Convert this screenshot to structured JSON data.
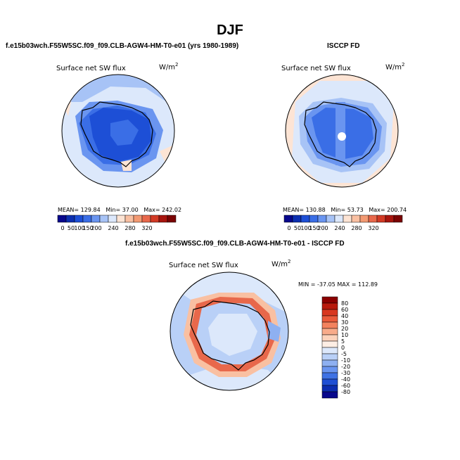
{
  "figure": {
    "season": "DJF",
    "panel1": {
      "title": "f.e15b03wch.F55W5SC.f09_f09.CLB-AGW4-HM-T0-e01 (yrs 1980-1989)",
      "variable": "Surface net SW flux",
      "units_base": "W/m",
      "units_exp": "2",
      "mean_label": "MEAN=",
      "mean": "129.84",
      "min_label": "Min=",
      "min": "37.00",
      "max_label": "Max=",
      "max": "242.02"
    },
    "panel2": {
      "title": "ISCCP FD",
      "variable": "Surface net SW flux",
      "units_base": "W/m",
      "units_exp": "2",
      "mean_label": "MEAN=",
      "mean": "130.88",
      "min_label": "Min=",
      "min": "53.73",
      "max_label": "Max=",
      "max": "200.74"
    },
    "panel3": {
      "title": "f.e15b03wch.F55W5SC.f09_f09.CLB-AGW4-HM-T0-e01 - ISCCP FD",
      "variable": "Surface net SW flux",
      "units_base": "W/m",
      "units_exp": "2",
      "minmax": "MIN = -37.05  MAX = 112.89"
    },
    "abs_colorbar": {
      "ticks": [
        "0",
        "50",
        "100",
        "150",
        "200",
        "240",
        "280",
        "320"
      ],
      "colors": [
        "#08088c",
        "#0c2fb0",
        "#1d4fd6",
        "#3a6ee6",
        "#6a95f0",
        "#a7c3f6",
        "#dce8fb",
        "#fde4d4",
        "#f9c0a2",
        "#f39a73",
        "#e8684b",
        "#d23a25",
        "#a8150e",
        "#7a0403"
      ]
    },
    "diff_colorbar": {
      "labels": [
        "80",
        "60",
        "40",
        "30",
        "20",
        "10",
        "5",
        "0",
        "-5",
        "-10",
        "-20",
        "-30",
        "-40",
        "-60",
        "-80"
      ],
      "colors": [
        "#8b0000",
        "#b81a0d",
        "#d8371f",
        "#ea5a3a",
        "#f3825e",
        "#f8ab8a",
        "#fcd2bb",
        "#fdeee4",
        "#dce8fb",
        "#b9d0f7",
        "#8eb0f1",
        "#6a95f0",
        "#3f72e4",
        "#1f4fd3",
        "#0c2db0",
        "#08088c"
      ]
    }
  }
}
